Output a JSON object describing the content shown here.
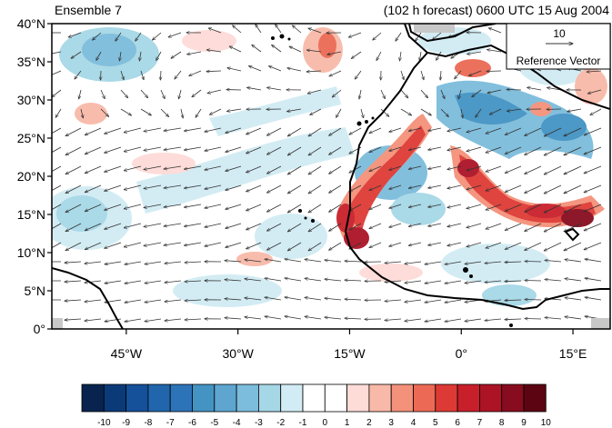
{
  "title_left": "Ensemble 7",
  "title_right": "(102 h forecast) 0600 UTC 15 Aug 2004",
  "map": {
    "lon_range": [
      -55,
      20
    ],
    "lat_range": [
      0,
      40
    ],
    "lat_ticks": [
      {
        "value": 40,
        "label": "40°N"
      },
      {
        "value": 35,
        "label": "35°N"
      },
      {
        "value": 30,
        "label": "30°N"
      },
      {
        "value": 25,
        "label": "25°N"
      },
      {
        "value": 20,
        "label": "20°N"
      },
      {
        "value": 15,
        "label": "15°N"
      },
      {
        "value": 10,
        "label": "10°N"
      },
      {
        "value": 5,
        "label": "5°N"
      },
      {
        "value": 0,
        "label": "0°"
      }
    ],
    "lon_ticks": [
      {
        "value": -45,
        "label": "45°W"
      },
      {
        "value": -30,
        "label": "30°W"
      },
      {
        "value": -15,
        "label": "15°W"
      },
      {
        "value": 0,
        "label": "0°"
      },
      {
        "value": 15,
        "label": "15°E"
      }
    ]
  },
  "reference_vector": {
    "magnitude": "10",
    "label": "Reference Vector"
  },
  "colorbar": {
    "labels": [
      "-10",
      "-9",
      "-8",
      "-7",
      "-6",
      "-5",
      "-4",
      "-3",
      "-2",
      "-1",
      "0",
      "1",
      "2",
      "3",
      "4",
      "5",
      "6",
      "7",
      "8",
      "9",
      "10"
    ],
    "colors": [
      "#08244e",
      "#0b3a78",
      "#15509a",
      "#2166ac",
      "#2d73b8",
      "#4393c3",
      "#5ea6d0",
      "#7cbcdc",
      "#a6d7e6",
      "#d1ecf4",
      "#ffffff",
      "#ffffff",
      "#fddbd7",
      "#f8b9a8",
      "#f4917a",
      "#ec6a55",
      "#de3a35",
      "#c8202b",
      "#ac1426",
      "#870c1f",
      "#5c0412"
    ]
  }
}
